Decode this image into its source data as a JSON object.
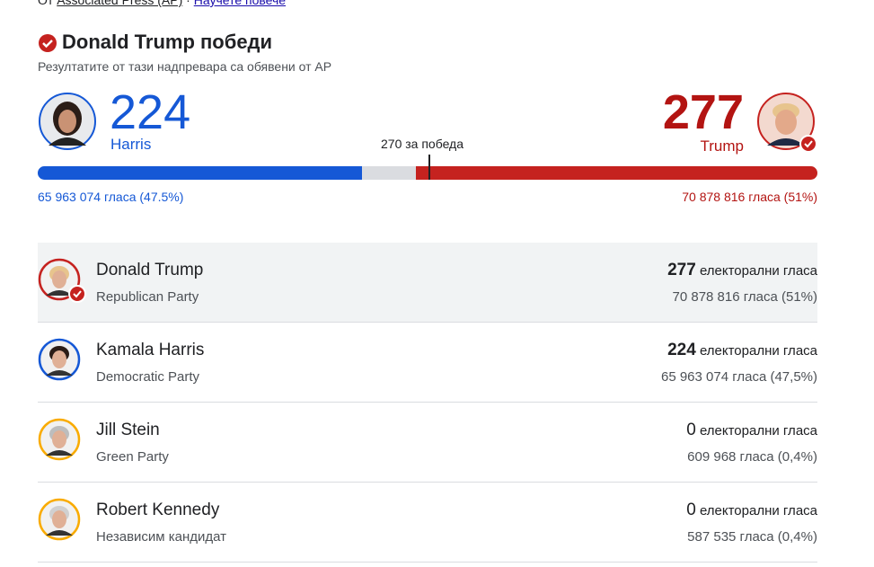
{
  "source": {
    "prefix": "От",
    "agency": "Associated Press (AP)",
    "separator": "·",
    "link": "Научете повече"
  },
  "header": {
    "title": "Donald Trump победи",
    "subtitle": "Резултатите от тази надпревара са обявени от AP"
  },
  "summary": {
    "left": {
      "electoral": 224,
      "name": "Harris",
      "votes": "65 963 074 гласа (47.5%)"
    },
    "right": {
      "electoral": 277,
      "name": "Trump",
      "votes": "70 878 816 гласа (51%)"
    },
    "threshold": 270,
    "threshold_label": "за победа"
  },
  "candidates": [
    {
      "name": "Donald Trump",
      "party": "Republican Party",
      "electoral": 277,
      "electoral_label": "електорални гласа",
      "votes": "70 878 816 гласа (51%)"
    },
    {
      "name": "Kamala Harris",
      "party": "Democratic Party",
      "electoral": 224,
      "electoral_label": "електорални гласа",
      "votes": "65 963 074 гласа (47,5%)"
    },
    {
      "name": "Jill Stein",
      "party": "Green Party",
      "electoral": 0,
      "electoral_label": "електорални гласа",
      "votes": "609 968 гласа (0,4%)"
    },
    {
      "name": "Robert Kennedy",
      "party": "Независим кандидат",
      "electoral": 0,
      "electoral_label": "електорални гласа",
      "votes": "587 535 гласа (0,4%)"
    }
  ]
}
